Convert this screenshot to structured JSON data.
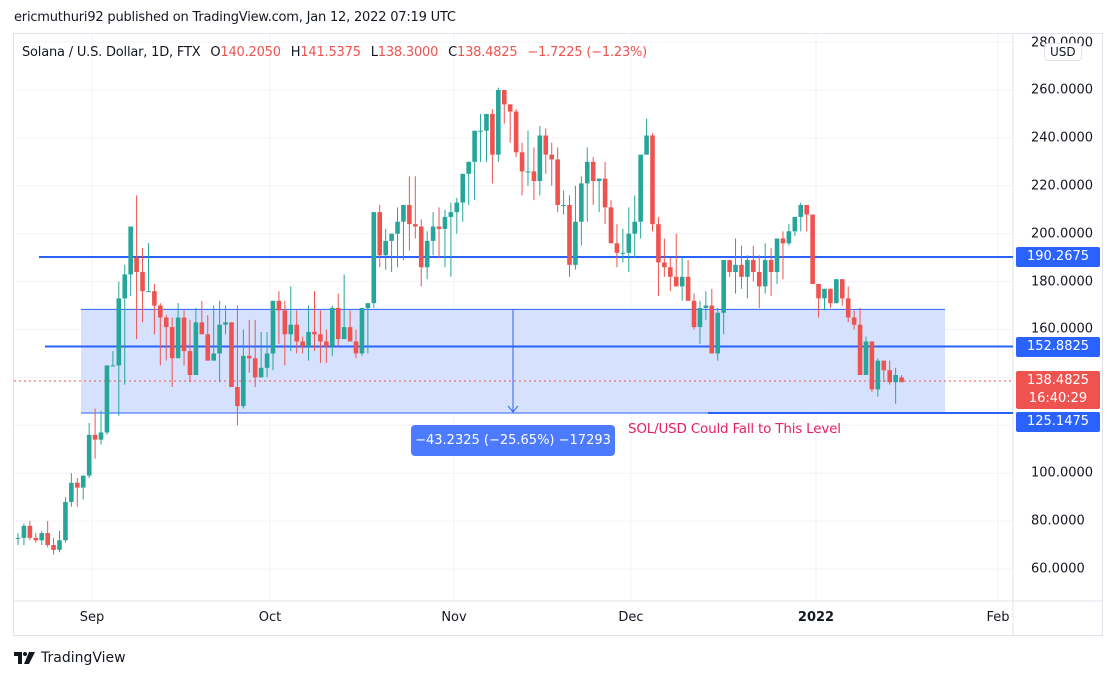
{
  "header": {
    "publisher_line": "ericmuthuri92 published on TradingView.com, Jan 12, 2022 07:19 UTC"
  },
  "legend": {
    "symbol": "Solana / U.S. Dollar, 1D, FTX",
    "open_label": "O",
    "open": "140.2050",
    "high_label": "H",
    "high": "141.5375",
    "low_label": "L",
    "low": "138.3000",
    "close_label": "C",
    "close": "138.4825",
    "change": "−1.7225 (−1.23%)"
  },
  "price_axis": {
    "currency": "USD",
    "ticks": [
      "280.0000",
      "260.0000",
      "240.0000",
      "220.0000",
      "200.0000",
      "180.0000",
      "160.0000",
      "100.0000",
      "80.0000",
      "60.0000"
    ],
    "tags": {
      "resistance": "190.2675",
      "mid_support": "152.8825",
      "last_price": "138.4825",
      "countdown": "16:40:29",
      "target": "125.1475"
    }
  },
  "time_axis": {
    "labels": [
      "Sep",
      "Oct",
      "Nov",
      "Dec",
      "2022",
      "Feb"
    ]
  },
  "annotations": {
    "measure_label": "−43.2325 (−25.65%) −17293",
    "note": "SOL/USD Could Fall to This Level"
  },
  "colors": {
    "up": "#26a69a",
    "down": "#ef5350",
    "line_blue": "#2962ff",
    "range_fill": "#d1dffd",
    "note_pink": "#e91e63",
    "grid": "#f0f3fa"
  },
  "brand": {
    "name": "TradingView"
  },
  "chart_data": {
    "type": "candlestick",
    "title": "Solana / U.S. Dollar, 1D, FTX",
    "xlabel": "",
    "ylabel": "USD",
    "ylim": [
      48,
      283
    ],
    "x_ticks": [
      "Sep",
      "Oct",
      "Nov",
      "Dec",
      "2022",
      "Feb"
    ],
    "y_ticks": [
      60,
      80,
      100,
      120,
      140,
      160,
      180,
      200,
      220,
      240,
      260,
      280
    ],
    "horizontal_lines": [
      {
        "name": "resistance",
        "value": 190.2675
      },
      {
        "name": "mid_support",
        "value": 152.8825
      },
      {
        "name": "target",
        "value": 125.1475
      }
    ],
    "range_box": {
      "top": 168.38,
      "bottom": 125.1475,
      "change": -43.2325,
      "change_pct": -25.65,
      "ticks": -17293
    },
    "last_price": 138.4825,
    "start_date": "2021-08-19",
    "candles_ohlc": [
      [
        73,
        75,
        70,
        73
      ],
      [
        73,
        79,
        70,
        78
      ],
      [
        78,
        80,
        72,
        73
      ],
      [
        73,
        75,
        71,
        72
      ],
      [
        72,
        76,
        70,
        75
      ],
      [
        75,
        80,
        69,
        70
      ],
      [
        70,
        73,
        66,
        68
      ],
      [
        68,
        76,
        67,
        72
      ],
      [
        72,
        90,
        71,
        88
      ],
      [
        88,
        100,
        86,
        96
      ],
      [
        96,
        98,
        86,
        94
      ],
      [
        94,
        99,
        89,
        99
      ],
      [
        99,
        121,
        98,
        116
      ],
      [
        116,
        127,
        106,
        114
      ],
      [
        114,
        126,
        112,
        117
      ],
      [
        117,
        137,
        116,
        145
      ],
      [
        145,
        151,
        146,
        145
      ],
      [
        145,
        180,
        124,
        173
      ],
      [
        173,
        187,
        137,
        183
      ],
      [
        183,
        196,
        174,
        203
      ],
      [
        190,
        216,
        156,
        184
      ],
      [
        184,
        194,
        163,
        176
      ],
      [
        176,
        196,
        176,
        176
      ],
      [
        176,
        179,
        158,
        170
      ],
      [
        170,
        171,
        145,
        165
      ],
      [
        165,
        166,
        147,
        161
      ],
      [
        161,
        165,
        136,
        148
      ],
      [
        148,
        171,
        156,
        165
      ],
      [
        165,
        168,
        145,
        151
      ],
      [
        151,
        164,
        138,
        141
      ],
      [
        141,
        169,
        151,
        163
      ],
      [
        163,
        172,
        160,
        158
      ],
      [
        158,
        166,
        150,
        147
      ],
      [
        147,
        170,
        148,
        150
      ],
      [
        150,
        172,
        138,
        162
      ],
      [
        162,
        170,
        158,
        163
      ],
      [
        163,
        163,
        151,
        136
      ],
      [
        136,
        170,
        120,
        128
      ],
      [
        128,
        160,
        127,
        149
      ],
      [
        149,
        164,
        142,
        148
      ],
      [
        148,
        164,
        136,
        140
      ],
      [
        140,
        159,
        140,
        144
      ],
      [
        144,
        159,
        140,
        150
      ],
      [
        150,
        168,
        143,
        172
      ],
      [
        172,
        176,
        154,
        168
      ],
      [
        168,
        172,
        145,
        158
      ],
      [
        158,
        178,
        151,
        162
      ],
      [
        162,
        168,
        150,
        155
      ],
      [
        155,
        157,
        150,
        153
      ],
      [
        153,
        170,
        147,
        159
      ],
      [
        159,
        176,
        151,
        158
      ],
      [
        158,
        168,
        146,
        155
      ],
      [
        155,
        160,
        146,
        153
      ],
      [
        153,
        170,
        149,
        169
      ],
      [
        169,
        175,
        153,
        156
      ],
      [
        156,
        183,
        156,
        161
      ],
      [
        161,
        168,
        156,
        155
      ],
      [
        155,
        160,
        148,
        150
      ],
      [
        150,
        168,
        149,
        169
      ],
      [
        169,
        171,
        150,
        171
      ],
      [
        171,
        190,
        169,
        209
      ],
      [
        209,
        212,
        186,
        191
      ],
      [
        191,
        202,
        185,
        197
      ],
      [
        197,
        199,
        184,
        200
      ],
      [
        200,
        211,
        186,
        205
      ],
      [
        205,
        210,
        189,
        212
      ],
      [
        212,
        224,
        193,
        204
      ],
      [
        204,
        224,
        198,
        203
      ],
      [
        203,
        206,
        178,
        186
      ],
      [
        186,
        201,
        181,
        197
      ],
      [
        197,
        209,
        191,
        203
      ],
      [
        203,
        211,
        190,
        202
      ],
      [
        202,
        210,
        186,
        207
      ],
      [
        207,
        213,
        182,
        209
      ],
      [
        209,
        215,
        200,
        213
      ],
      [
        213,
        218,
        205,
        225
      ],
      [
        225,
        230,
        212,
        230
      ],
      [
        230,
        232,
        214,
        243
      ],
      [
        243,
        250,
        230,
        243
      ],
      [
        243,
        250,
        230,
        250
      ],
      [
        250,
        252,
        221,
        233
      ],
      [
        233,
        261,
        230,
        260
      ],
      [
        260,
        258,
        246,
        254
      ],
      [
        254,
        252,
        238,
        251
      ],
      [
        251,
        252,
        232,
        234
      ],
      [
        234,
        238,
        216,
        226
      ],
      [
        226,
        243,
        220,
        226
      ],
      [
        226,
        236,
        214,
        222
      ],
      [
        222,
        245,
        216,
        241
      ],
      [
        241,
        244,
        225,
        233
      ],
      [
        233,
        238,
        220,
        231
      ],
      [
        231,
        236,
        209,
        212
      ],
      [
        212,
        218,
        208,
        212
      ],
      [
        212,
        216,
        182,
        187
      ],
      [
        187,
        220,
        185,
        205
      ],
      [
        205,
        224,
        195,
        221
      ],
      [
        221,
        236,
        205,
        230
      ],
      [
        230,
        232,
        212,
        222
      ],
      [
        222,
        223,
        209,
        223
      ],
      [
        223,
        230,
        204,
        211
      ],
      [
        211,
        214,
        198,
        196
      ],
      [
        196,
        204,
        186,
        192
      ],
      [
        192,
        202,
        188,
        192
      ],
      [
        192,
        211,
        184,
        200
      ],
      [
        200,
        216,
        190,
        205
      ],
      [
        205,
        230,
        198,
        233
      ],
      [
        233,
        248,
        236,
        241
      ],
      [
        241,
        242,
        201,
        204
      ],
      [
        204,
        207,
        174,
        188
      ],
      [
        188,
        198,
        182,
        186
      ],
      [
        186,
        190,
        176,
        182
      ],
      [
        182,
        200,
        180,
        178
      ],
      [
        178,
        190,
        172,
        182
      ],
      [
        182,
        189,
        172,
        172
      ],
      [
        172,
        175,
        160,
        161
      ],
      [
        161,
        172,
        154,
        169
      ],
      [
        169,
        176,
        164,
        170
      ],
      [
        170,
        177,
        155,
        150
      ],
      [
        150,
        169,
        147,
        167
      ],
      [
        167,
        189,
        158,
        189
      ],
      [
        189,
        188,
        182,
        184
      ],
      [
        184,
        198,
        175,
        187
      ],
      [
        187,
        195,
        177,
        182
      ],
      [
        182,
        191,
        173,
        189
      ],
      [
        189,
        195,
        180,
        184
      ],
      [
        184,
        191,
        169,
        178
      ],
      [
        178,
        196,
        175,
        189
      ],
      [
        189,
        194,
        174,
        184
      ],
      [
        184,
        191,
        179,
        198
      ],
      [
        198,
        201,
        181,
        196
      ],
      [
        196,
        204,
        195,
        201
      ],
      [
        201,
        206,
        199,
        207
      ],
      [
        207,
        213,
        201,
        212
      ],
      [
        212,
        210,
        201,
        208
      ],
      [
        208,
        205,
        179,
        179
      ],
      [
        179,
        172,
        165,
        173
      ],
      [
        173,
        177,
        168,
        177
      ],
      [
        177,
        174,
        169,
        171
      ],
      [
        171,
        181,
        171,
        181
      ],
      [
        181,
        180,
        170,
        173
      ],
      [
        173,
        178,
        163,
        165
      ],
      [
        165,
        168,
        160,
        162
      ],
      [
        162,
        169,
        145,
        141
      ],
      [
        141,
        157,
        141,
        155
      ],
      [
        155,
        150,
        134,
        135
      ],
      [
        135,
        148,
        132,
        147
      ],
      [
        147,
        145,
        138,
        143
      ],
      [
        143,
        147,
        137,
        138
      ],
      [
        138,
        144,
        129,
        141
      ],
      [
        140,
        141,
        138,
        138
      ]
    ]
  }
}
